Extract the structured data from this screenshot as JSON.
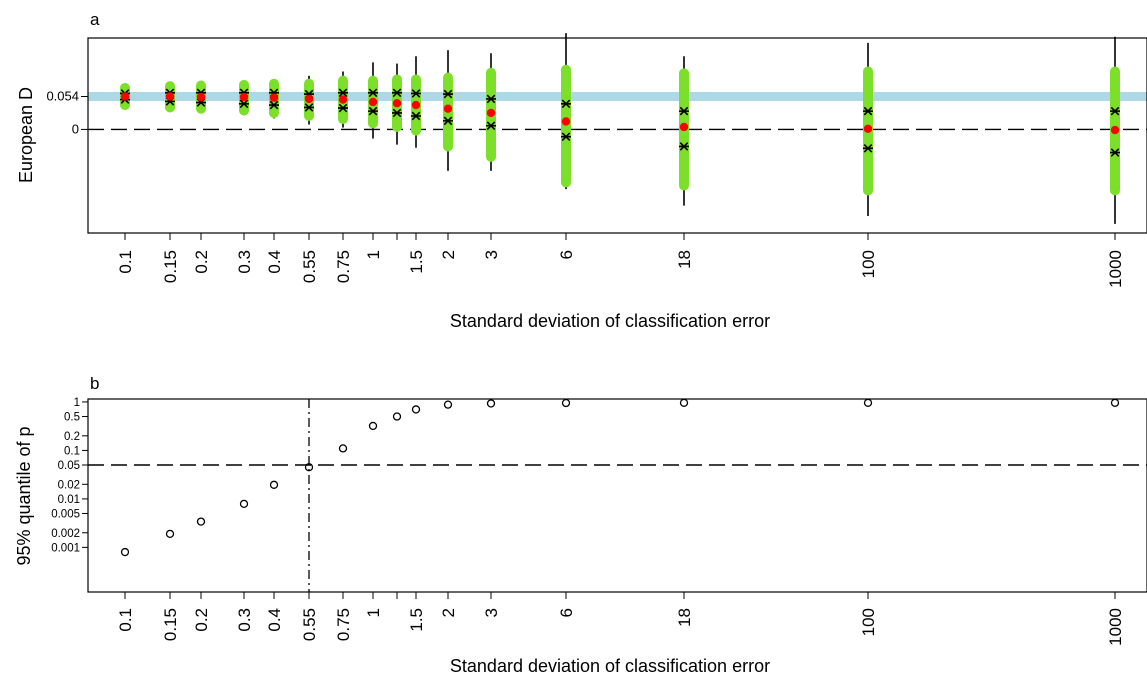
{
  "x_categories": [
    "0.1",
    "0.15",
    "0.2",
    "0.3",
    "0.4",
    "0.55",
    "0.75",
    "1",
    "",
    "1.5",
    "2",
    "3",
    "6",
    "18",
    "100",
    "1000"
  ],
  "chart_data": [
    {
      "type": "scatter",
      "panel_label": "a",
      "xlabel": "Standard deviation of classification error",
      "ylabel": "European D",
      "ylim": [
        -0.17,
        0.15
      ],
      "yticks": [
        {
          "value": 0,
          "label": "0"
        },
        {
          "value": 0.054,
          "label": "0.054"
        }
      ],
      "reference_lines": [
        {
          "value": 0.054,
          "style": "band",
          "color": "#add8e6"
        },
        {
          "value": 0,
          "style": "dashed",
          "color": "#000000"
        }
      ],
      "colors": {
        "interval": "#7ce02a",
        "whisker": "#000000",
        "mean": "#ff0000",
        "star": "#000000"
      },
      "series": [
        {
          "category": "0.1",
          "mean": 0.054,
          "q_low": 0.049,
          "q_high": 0.059,
          "bar_low": 0.04,
          "bar_high": 0.068,
          "whisk_low": 0.036,
          "whisk_high": 0.072
        },
        {
          "category": "0.15",
          "mean": 0.054,
          "q_low": 0.046,
          "q_high": 0.06,
          "bar_low": 0.036,
          "bar_high": 0.071,
          "whisk_low": 0.032,
          "whisk_high": 0.075
        },
        {
          "category": "0.2",
          "mean": 0.053,
          "q_low": 0.044,
          "q_high": 0.06,
          "bar_low": 0.034,
          "bar_high": 0.072,
          "whisk_low": 0.028,
          "whisk_high": 0.077
        },
        {
          "category": "0.3",
          "mean": 0.053,
          "q_low": 0.042,
          "q_high": 0.06,
          "bar_low": 0.031,
          "bar_high": 0.073,
          "whisk_low": 0.023,
          "whisk_high": 0.08
        },
        {
          "category": "0.4",
          "mean": 0.052,
          "q_low": 0.04,
          "q_high": 0.06,
          "bar_low": 0.027,
          "bar_high": 0.075,
          "whisk_low": 0.018,
          "whisk_high": 0.082
        },
        {
          "category": "0.55",
          "mean": 0.05,
          "q_low": 0.036,
          "q_high": 0.058,
          "bar_low": 0.022,
          "bar_high": 0.075,
          "whisk_low": 0.008,
          "whisk_high": 0.088
        },
        {
          "category": "0.75",
          "mean": 0.049,
          "q_low": 0.035,
          "q_high": 0.06,
          "bar_low": 0.017,
          "bar_high": 0.08,
          "whisk_low": 0.003,
          "whisk_high": 0.095
        },
        {
          "category": "1",
          "mean": 0.045,
          "q_low": 0.03,
          "q_high": 0.06,
          "bar_low": 0.01,
          "bar_high": 0.08,
          "whisk_low": -0.015,
          "whisk_high": 0.11
        },
        {
          "category": "",
          "mean": 0.043,
          "q_low": 0.027,
          "q_high": 0.06,
          "bar_low": 0.004,
          "bar_high": 0.082,
          "whisk_low": -0.025,
          "whisk_high": 0.108
        },
        {
          "category": "1.5",
          "mean": 0.04,
          "q_low": 0.022,
          "q_high": 0.059,
          "bar_low": -0.002,
          "bar_high": 0.082,
          "whisk_low": -0.03,
          "whisk_high": 0.12
        },
        {
          "category": "2",
          "mean": 0.034,
          "q_low": 0.014,
          "q_high": 0.058,
          "bar_low": -0.028,
          "bar_high": 0.085,
          "whisk_low": -0.068,
          "whisk_high": 0.13
        },
        {
          "category": "3",
          "mean": 0.027,
          "q_low": 0.006,
          "q_high": 0.05,
          "bar_low": -0.045,
          "bar_high": 0.093,
          "whisk_low": -0.068,
          "whisk_high": 0.125
        },
        {
          "category": "6",
          "mean": 0.013,
          "q_low": -0.012,
          "q_high": 0.042,
          "bar_low": -0.087,
          "bar_high": 0.098,
          "whisk_low": -0.098,
          "whisk_high": 0.158
        },
        {
          "category": "18",
          "mean": 0.004,
          "q_low": -0.028,
          "q_high": 0.03,
          "bar_low": -0.092,
          "bar_high": 0.092,
          "whisk_low": -0.125,
          "whisk_high": 0.12
        },
        {
          "category": "100",
          "mean": 0.001,
          "q_low": -0.031,
          "q_high": 0.03,
          "bar_low": -0.1,
          "bar_high": 0.095,
          "whisk_low": -0.142,
          "whisk_high": 0.142
        },
        {
          "category": "1000",
          "mean": -0.001,
          "q_low": -0.038,
          "q_high": 0.03,
          "bar_low": -0.1,
          "bar_high": 0.095,
          "whisk_low": -0.155,
          "whisk_high": 0.152
        }
      ]
    },
    {
      "type": "scatter",
      "panel_label": "b",
      "xlabel": "Standard deviation of classification error",
      "ylabel": "95% quantile of p",
      "yscale": "log",
      "ylim": [
        0.00012,
        1.15
      ],
      "yticks": [
        "1",
        "0.5",
        "0.2",
        "0.1",
        "0.05",
        "0.02",
        "0.01",
        "0.005",
        "0.002",
        "0.001"
      ],
      "reference_lines": [
        {
          "axis": "y",
          "value": 0.05,
          "style": "dashed"
        },
        {
          "axis": "x",
          "category": "0.55",
          "style": "dashdot"
        }
      ],
      "points": [
        {
          "category": "0.1",
          "value": 0.0008
        },
        {
          "category": "0.15",
          "value": 0.0019
        },
        {
          "category": "0.2",
          "value": 0.0034
        },
        {
          "category": "0.3",
          "value": 0.0079
        },
        {
          "category": "0.4",
          "value": 0.0195
        },
        {
          "category": "0.55",
          "value": 0.045
        },
        {
          "category": "0.75",
          "value": 0.11
        },
        {
          "category": "1",
          "value": 0.32
        },
        {
          "category": "",
          "value": 0.5
        },
        {
          "category": "1.5",
          "value": 0.7
        },
        {
          "category": "2",
          "value": 0.88
        },
        {
          "category": "3",
          "value": 0.93
        },
        {
          "category": "6",
          "value": 0.95
        },
        {
          "category": "18",
          "value": 0.96
        },
        {
          "category": "100",
          "value": 0.96
        },
        {
          "category": "1000",
          "value": 0.96
        }
      ]
    }
  ]
}
